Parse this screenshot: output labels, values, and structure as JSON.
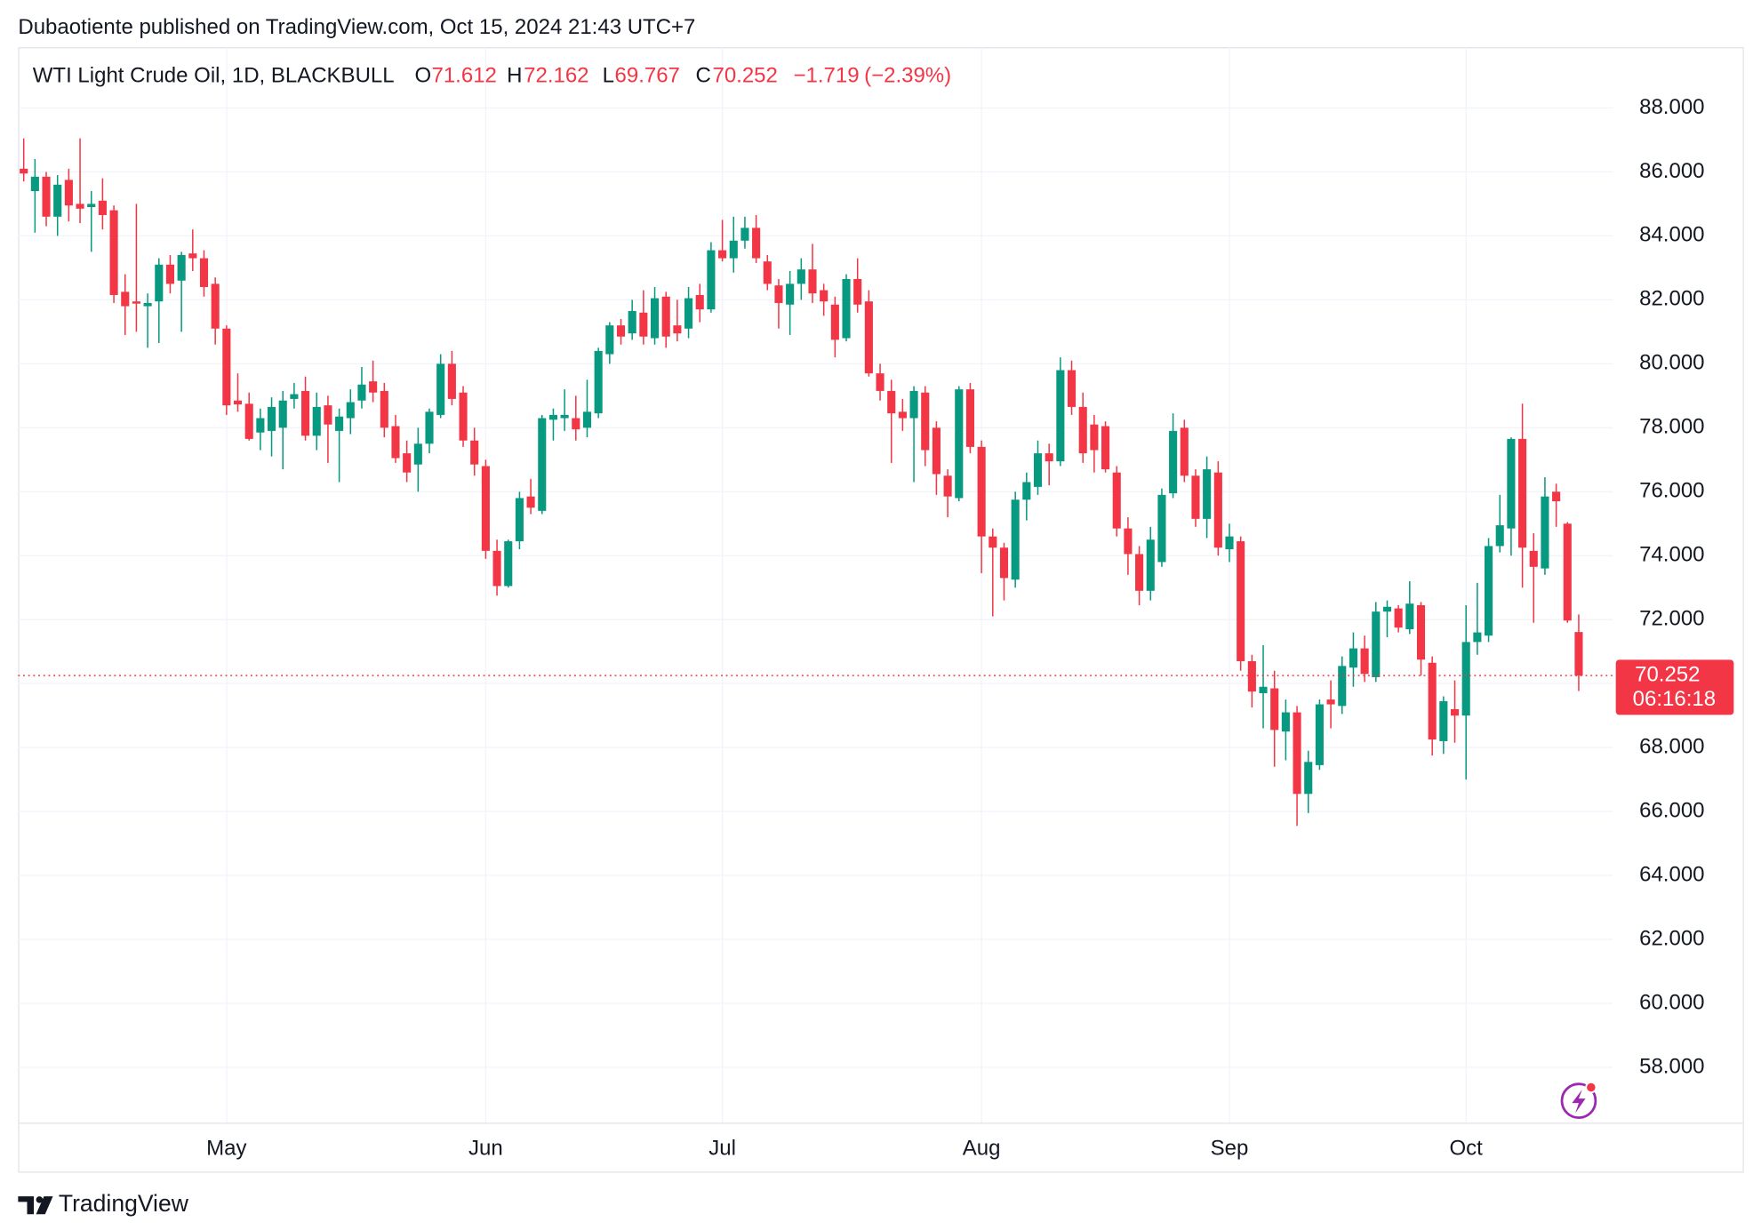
{
  "header": {
    "published": "Dubaotiente published on TradingView.com, Oct 15, 2024 21:43 UTC+7"
  },
  "footer": {
    "brand": "TradingView"
  },
  "chart_data": {
    "type": "candlestick",
    "legend": {
      "symbol": "WTI Light Crude Oil, 1D, BLACKBULL",
      "open_label": "O",
      "open": "71.612",
      "high_label": "H",
      "high": "72.162",
      "low_label": "L",
      "low": "69.767",
      "close_label": "C",
      "close": "70.252",
      "change": "−1.719",
      "change_percent": "(−2.39%)"
    },
    "up_color": "#089981",
    "down_color": "#f23645",
    "last_price": {
      "value": 70.252,
      "label": "70.252"
    },
    "countdown": "06:16:18",
    "ylim": [
      56.25,
      89.9
    ],
    "yticks": [
      {
        "value": 58,
        "label": "58.000"
      },
      {
        "value": 60,
        "label": "60.000"
      },
      {
        "value": 62,
        "label": "62.000"
      },
      {
        "value": 64,
        "label": "64.000"
      },
      {
        "value": 66,
        "label": "66.000"
      },
      {
        "value": 68,
        "label": "68.000"
      },
      {
        "value": 70,
        "label": "70.000"
      },
      {
        "value": 72,
        "label": "72.000"
      },
      {
        "value": 74,
        "label": "74.000"
      },
      {
        "value": 76,
        "label": "76.000"
      },
      {
        "value": 78,
        "label": "78.000"
      },
      {
        "value": 80,
        "label": "80.000"
      },
      {
        "value": 82,
        "label": "82.000"
      },
      {
        "value": 84,
        "label": "84.000"
      },
      {
        "value": 86,
        "label": "86.000"
      },
      {
        "value": 88,
        "label": "88.000"
      }
    ],
    "grid": true,
    "categories": [
      null,
      null,
      null,
      null,
      null,
      null,
      null,
      null,
      null,
      null,
      null,
      null,
      null,
      null,
      null,
      null,
      null,
      null,
      "May",
      null,
      null,
      null,
      null,
      null,
      null,
      null,
      null,
      null,
      null,
      null,
      null,
      null,
      null,
      null,
      null,
      null,
      null,
      null,
      null,
      null,
      null,
      "Jun",
      null,
      null,
      null,
      null,
      null,
      null,
      null,
      null,
      null,
      null,
      null,
      null,
      null,
      null,
      null,
      null,
      null,
      null,
      null,
      null,
      "Jul",
      null,
      null,
      null,
      null,
      null,
      null,
      null,
      null,
      null,
      null,
      null,
      null,
      null,
      null,
      null,
      null,
      null,
      null,
      null,
      null,
      null,
      null,
      "Aug",
      null,
      null,
      null,
      null,
      null,
      null,
      null,
      null,
      null,
      null,
      null,
      null,
      null,
      null,
      null,
      null,
      null,
      null,
      null,
      null,
      null,
      "Sep",
      null,
      null,
      null,
      null,
      null,
      null,
      null,
      null,
      null,
      null,
      null,
      null,
      null,
      null,
      null,
      null,
      null,
      null,
      null,
      null,
      "Oct",
      null,
      null,
      null,
      null,
      null,
      null,
      null,
      null,
      null,
      null
    ],
    "open": [
      86.1,
      85.4,
      85.85,
      84.6,
      85.75,
      85.0,
      84.9,
      85.1,
      84.8,
      82.25,
      81.95,
      81.8,
      81.95,
      83.1,
      82.6,
      83.45,
      83.3,
      82.5,
      81.1,
      78.85,
      78.75,
      77.85,
      77.9,
      78.0,
      78.9,
      79.15,
      77.75,
      78.7,
      77.9,
      78.3,
      78.85,
      79.45,
      79.15,
      78.05,
      77.2,
      76.85,
      77.5,
      78.4,
      80.0,
      79.1,
      77.6,
      76.8,
      74.15,
      73.05,
      74.45,
      75.85,
      75.4,
      78.25,
      78.3,
      78.3,
      78.0,
      78.45,
      80.3,
      81.2,
      80.95,
      81.6,
      80.8,
      82.1,
      81.2,
      81.1,
      82.15,
      81.7,
      83.55,
      83.3,
      83.85,
      84.25,
      83.2,
      82.45,
      81.85,
      82.5,
      82.95,
      82.3,
      81.85,
      80.8,
      82.65,
      81.95,
      79.7,
      79.15,
      78.5,
      78.3,
      79.1,
      78.0,
      76.5,
      75.8,
      79.2,
      77.4,
      74.6,
      74.25,
      73.25,
      75.75,
      76.15,
      77.2,
      76.95,
      79.8,
      78.65,
      78.1,
      78.05,
      76.6,
      74.85,
      74.05,
      72.9,
      73.8,
      75.95,
      78.0,
      76.5,
      75.15,
      76.6,
      74.2,
      74.45,
      70.7,
      69.7,
      69.85,
      68.5,
      69.1,
      66.55,
      67.45,
      69.5,
      69.3,
      70.5,
      71.1,
      70.2,
      72.25,
      72.35,
      71.7,
      72.45,
      70.65,
      68.2,
      69.2,
      69.0,
      71.3,
      71.5,
      74.3,
      74.85,
      77.65,
      74.15,
      73.6,
      76.0,
      75.0,
      71.612
    ],
    "high": [
      87.05,
      86.4,
      86.0,
      85.9,
      86.1,
      87.05,
      85.4,
      85.8,
      84.95,
      82.8,
      85.0,
      82.2,
      83.3,
      83.4,
      83.5,
      84.2,
      83.55,
      82.7,
      81.2,
      79.7,
      79.1,
      78.6,
      78.95,
      79.15,
      79.4,
      79.6,
      79.1,
      79.0,
      78.6,
      79.2,
      79.9,
      80.1,
      79.4,
      78.4,
      77.6,
      78.0,
      78.6,
      80.3,
      80.4,
      79.3,
      78.0,
      77.0,
      74.5,
      74.5,
      76.0,
      76.4,
      78.4,
      78.6,
      79.2,
      79.0,
      79.5,
      80.5,
      81.3,
      81.4,
      82.0,
      82.3,
      82.4,
      82.25,
      82.0,
      82.4,
      82.5,
      83.8,
      84.5,
      84.6,
      84.6,
      84.65,
      83.4,
      82.65,
      82.9,
      83.3,
      83.75,
      82.5,
      82.1,
      82.8,
      83.3,
      82.3,
      80.0,
      79.5,
      78.9,
      79.3,
      79.3,
      78.2,
      76.7,
      79.3,
      79.4,
      77.6,
      74.85,
      74.4,
      76.0,
      76.6,
      77.6,
      77.5,
      80.2,
      80.1,
      79.1,
      78.4,
      78.2,
      76.8,
      75.2,
      74.3,
      74.9,
      76.1,
      78.45,
      78.25,
      76.7,
      77.1,
      76.95,
      75.0,
      74.6,
      70.9,
      71.2,
      70.4,
      69.5,
      69.3,
      67.9,
      69.5,
      70.1,
      70.85,
      71.6,
      71.5,
      72.55,
      72.6,
      72.45,
      73.2,
      72.55,
      70.85,
      69.6,
      70.1,
      72.45,
      73.15,
      74.55,
      75.9,
      77.7,
      78.75,
      74.7,
      76.45,
      76.25,
      75.05,
      72.162
    ],
    "low": [
      85.7,
      84.1,
      84.3,
      84.0,
      84.45,
      84.4,
      83.5,
      84.2,
      81.9,
      80.9,
      81.0,
      80.5,
      80.65,
      82.2,
      81.0,
      82.9,
      82.1,
      80.6,
      78.4,
      78.5,
      77.6,
      77.3,
      77.1,
      76.7,
      78.6,
      77.6,
      77.3,
      76.9,
      76.3,
      77.8,
      78.6,
      78.8,
      77.7,
      76.9,
      76.3,
      76.0,
      77.2,
      78.3,
      78.7,
      77.4,
      76.5,
      73.9,
      72.75,
      73.0,
      74.2,
      75.3,
      75.3,
      77.6,
      77.9,
      77.6,
      77.7,
      78.3,
      80.0,
      80.6,
      80.75,
      80.6,
      80.6,
      80.5,
      80.7,
      80.8,
      81.3,
      81.6,
      83.2,
      82.85,
      83.6,
      83.15,
      82.3,
      81.1,
      80.9,
      82.0,
      81.9,
      81.5,
      80.2,
      80.7,
      81.6,
      79.6,
      78.85,
      76.9,
      77.9,
      76.3,
      76.8,
      75.9,
      75.2,
      75.7,
      77.2,
      73.45,
      72.1,
      72.6,
      73.0,
      75.1,
      75.9,
      76.2,
      76.8,
      78.4,
      76.9,
      76.6,
      76.6,
      74.6,
      73.4,
      72.45,
      72.6,
      73.65,
      75.8,
      76.3,
      74.9,
      74.55,
      74.0,
      73.8,
      70.4,
      69.25,
      68.6,
      67.4,
      67.6,
      65.55,
      65.95,
      67.3,
      68.6,
      69.05,
      69.9,
      70.05,
      70.05,
      71.45,
      71.6,
      71.55,
      70.25,
      67.75,
      67.8,
      68.15,
      67.0,
      70.9,
      71.3,
      74.1,
      74.0,
      73.0,
      71.9,
      73.4,
      74.9,
      71.9,
      69.767
    ],
    "close": [
      85.95,
      85.85,
      84.6,
      85.6,
      84.95,
      84.85,
      85.0,
      84.65,
      82.15,
      81.8,
      81.88,
      81.9,
      83.1,
      82.5,
      83.4,
      83.3,
      82.4,
      81.1,
      78.7,
      78.73,
      77.65,
      78.3,
      78.65,
      78.85,
      79.05,
      77.75,
      78.65,
      78.1,
      78.35,
      78.8,
      79.35,
      79.1,
      78.0,
      77.05,
      76.6,
      77.5,
      78.5,
      80.0,
      78.9,
      77.6,
      76.85,
      74.15,
      73.05,
      74.45,
      75.8,
      75.5,
      78.3,
      78.4,
      78.4,
      77.95,
      78.5,
      80.4,
      81.2,
      80.85,
      81.65,
      80.85,
      82.05,
      80.85,
      80.95,
      82.05,
      81.7,
      83.55,
      83.3,
      83.85,
      84.25,
      83.3,
      82.5,
      81.9,
      82.5,
      82.95,
      82.2,
      81.95,
      80.75,
      82.65,
      81.85,
      79.7,
      79.15,
      78.45,
      78.3,
      79.15,
      77.3,
      76.55,
      75.85,
      79.2,
      77.4,
      74.6,
      74.25,
      73.3,
      75.75,
      76.3,
      77.2,
      76.95,
      79.8,
      78.65,
      77.2,
      77.3,
      76.7,
      74.85,
      74.05,
      72.9,
      74.5,
      75.9,
      77.9,
      76.5,
      75.15,
      76.7,
      74.25,
      74.6,
      70.7,
      69.75,
      69.9,
      68.55,
      69.1,
      66.55,
      67.55,
      69.35,
      69.35,
      70.55,
      71.1,
      70.3,
      72.25,
      72.4,
      71.75,
      72.5,
      70.75,
      68.25,
      69.45,
      69.0,
      71.3,
      71.6,
      74.3,
      74.95,
      77.65,
      74.25,
      73.65,
      75.85,
      75.7,
      71.971,
      70.252
    ]
  }
}
